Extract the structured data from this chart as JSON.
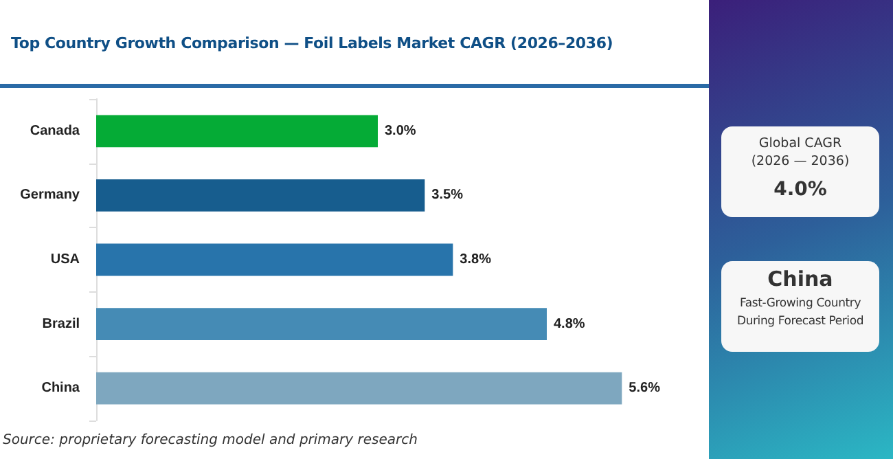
{
  "chart_data": [
    {
      "type": "bar",
      "orientation": "horizontal",
      "title": "Top Country Growth Comparison — Foil Labels Market CAGR (2026–2036)",
      "categories": [
        "Canada",
        "Germany",
        "USA",
        "Brazil",
        "China"
      ],
      "values": [
        3.0,
        3.5,
        3.8,
        4.8,
        5.6
      ],
      "colors": [
        "#05ab36",
        "#175d8e",
        "#2874ab",
        "#458bb5",
        "#7ea7bf"
      ],
      "value_labels": [
        "3.0%",
        "3.5%",
        "3.8%",
        "4.8%",
        "5.6%"
      ],
      "tick_labels": "y",
      "grid": false,
      "annotations": [
        "Source: proprietary forecasting model and primary research"
      ]
    },
    {
      "type": "other",
      "annotations": [
        "Global CAGR (2026 — 2036)",
        "4.0%",
        "China",
        "Fast-Growing Country During Forecast Period"
      ]
    }
  ]
}
